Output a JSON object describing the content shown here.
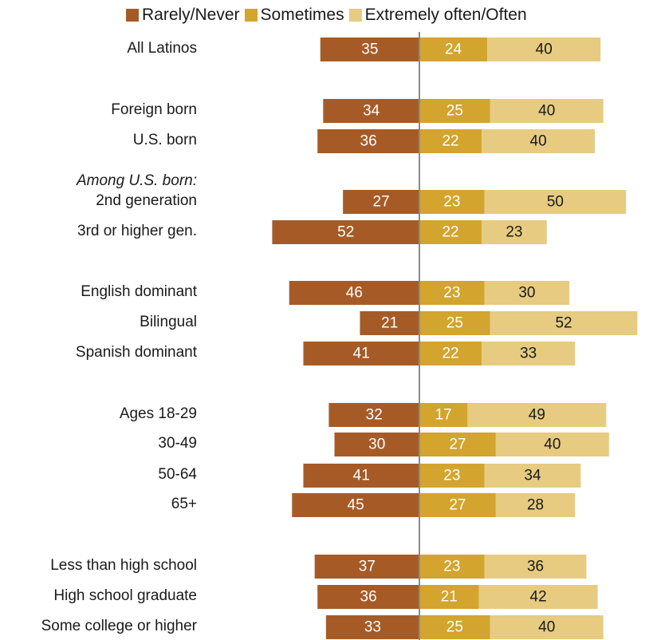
{
  "chart_data": {
    "type": "bar",
    "orientation": "horizontal-diverging",
    "series": [
      {
        "name": "Rarely/Never",
        "color": "#a65b27",
        "label_color": "#ffffff",
        "values": [
          35,
          34,
          36,
          27,
          52,
          46,
          21,
          41,
          32,
          30,
          41,
          45,
          37,
          36,
          33
        ]
      },
      {
        "name": "Sometimes",
        "color": "#d3a42e",
        "label_color": "#ffffff",
        "values": [
          24,
          25,
          22,
          23,
          22,
          23,
          25,
          22,
          17,
          27,
          23,
          27,
          23,
          21,
          25
        ]
      },
      {
        "name": "Extremely often/Often",
        "color": "#e6cb81",
        "label_color": "#1a1a1a",
        "values": [
          40,
          40,
          40,
          50,
          23,
          30,
          52,
          33,
          49,
          40,
          34,
          28,
          36,
          42,
          40
        ]
      }
    ],
    "categories": [
      "All Latinos",
      "Foreign born",
      "U.S. born",
      "2nd generation",
      "3rd or higher gen.",
      "English dominant",
      "Bilingual",
      "Spanish dominant",
      "Ages 18-29",
      "30-49",
      "50-64",
      "65+",
      "Less than high school",
      "High school graduate",
      "Some college or higher"
    ],
    "subheadings": [
      {
        "text": "Among U.S. born:",
        "before_category_index": 3
      }
    ],
    "legend": {
      "position": "top"
    },
    "grid": false
  }
}
